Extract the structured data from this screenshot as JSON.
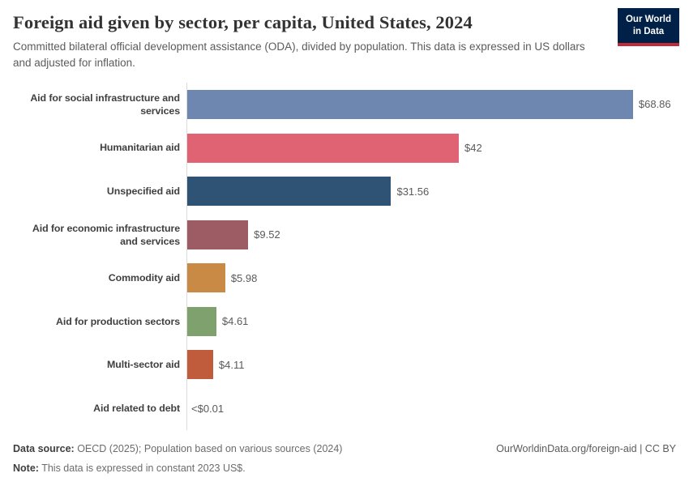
{
  "header": {
    "title": "Foreign aid given by sector, per capita, United States, 2024",
    "subtitle": "Committed bilateral official development assistance (ODA), divided by population. This data is expressed in US dollars and adjusted for inflation.",
    "logo": {
      "line1": "Our World",
      "line2": "in Data",
      "bg_color": "#002147",
      "accent_color": "#bf2b36"
    }
  },
  "chart_data": {
    "type": "bar",
    "orientation": "horizontal",
    "title": "Foreign aid given by sector, per capita, United States, 2024",
    "categories": [
      "Aid for social infrastructure and services",
      "Humanitarian aid",
      "Unspecified aid",
      "Aid for economic infrastructure and services",
      "Commodity aid",
      "Aid for production sectors",
      "Multi-sector aid",
      "Aid related to debt"
    ],
    "values": [
      68.86,
      42,
      31.56,
      9.52,
      5.98,
      4.61,
      4.11,
      0.01
    ],
    "value_labels": [
      "$68.86",
      "$42",
      "$31.56",
      "$9.52",
      "$5.98",
      "$4.61",
      "$4.11",
      "<$0.01"
    ],
    "bar_colors": [
      "#6e87b0",
      "#df6372",
      "#2f5374",
      "#9d5b63",
      "#c98a45",
      "#7ea16d",
      "#c05b3c",
      null
    ],
    "xlim": [
      0,
      68.86
    ],
    "grid": false,
    "legend": "none",
    "axis_line_color": "#dcdcdc"
  },
  "footer": {
    "source_label": "Data source:",
    "source_text": " OECD (2025); Population based on various sources (2024)",
    "note_label": "Note:",
    "note_text": " This data is expressed in constant 2023 US$.",
    "link_text": "OurWorldinData.org/foreign-aid | CC BY"
  }
}
